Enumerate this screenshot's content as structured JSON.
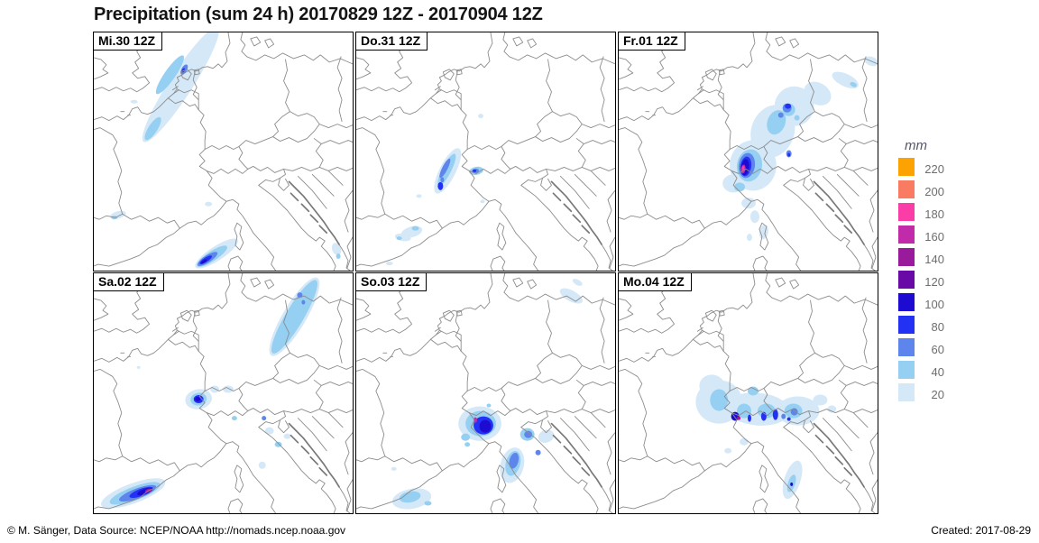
{
  "title": "Precipitation (sum 24 h) 20170829 12Z - 20170904 12Z",
  "legend": {
    "unit": "mm",
    "entries": [
      {
        "value": "220",
        "color": "#FCA303"
      },
      {
        "value": "200",
        "color": "#F97C62"
      },
      {
        "value": "180",
        "color": "#FB3DA8"
      },
      {
        "value": "160",
        "color": "#C12BA9"
      },
      {
        "value": "140",
        "color": "#991B9B"
      },
      {
        "value": "120",
        "color": "#6A0AA6"
      },
      {
        "value": "100",
        "color": "#1D0BD2"
      },
      {
        "value": "80",
        "color": "#2231F4"
      },
      {
        "value": "60",
        "color": "#5D85EC"
      },
      {
        "value": "40",
        "color": "#95CFF2"
      },
      {
        "value": "20",
        "color": "#D4E8F8"
      }
    ]
  },
  "panels": [
    {
      "label": "Mi.30 12Z",
      "blobs": [
        [
          97,
          58,
          76,
          13,
          -57,
          20
        ],
        [
          85,
          47,
          26,
          6,
          -55,
          40
        ],
        [
          66,
          107,
          15,
          5,
          -57,
          40
        ],
        [
          101,
          41,
          6,
          3,
          -60,
          60
        ],
        [
          100,
          42,
          2.5,
          1.5,
          -60,
          80
        ],
        [
          45,
          77,
          4,
          2,
          0,
          20
        ],
        [
          128,
          191,
          4,
          2.5,
          0,
          20
        ],
        [
          27,
          203,
          9,
          4,
          -15,
          20
        ],
        [
          23,
          206,
          3.5,
          2,
          0,
          40
        ],
        [
          137,
          246,
          28,
          8,
          -33,
          20
        ],
        [
          132,
          249,
          20,
          5.5,
          -33,
          40
        ],
        [
          127,
          252,
          13,
          4,
          -33,
          60
        ],
        [
          125,
          253,
          8,
          2.5,
          -33,
          80
        ],
        [
          123,
          255,
          4,
          1.5,
          -33,
          100
        ],
        [
          271,
          241,
          5,
          7,
          -20,
          20
        ],
        [
          273,
          249,
          2.5,
          3,
          0,
          40
        ]
      ]
    },
    {
      "label": "Do.31 12Z",
      "blobs": [
        [
          102,
          154,
          28,
          9,
          -63,
          20
        ],
        [
          101,
          153,
          20,
          5,
          -63,
          40
        ],
        [
          99,
          151,
          12,
          3,
          -63,
          60
        ],
        [
          96,
          164,
          2,
          3,
          0,
          60
        ],
        [
          94,
          171,
          3,
          4.5,
          0,
          80
        ],
        [
          134,
          154,
          8,
          4.5,
          -10,
          40
        ],
        [
          133,
          154,
          4,
          2.5,
          -10,
          60
        ],
        [
          132,
          154,
          2,
          1.5,
          0,
          80
        ],
        [
          70,
          182,
          3,
          2,
          0,
          20
        ],
        [
          62,
          222,
          12,
          6,
          -15,
          20
        ],
        [
          52,
          228,
          9,
          4,
          10,
          20
        ],
        [
          66,
          218,
          4,
          2.5,
          0,
          40
        ],
        [
          48,
          229,
          3,
          2,
          0,
          40
        ],
        [
          139,
          93,
          3,
          2.5,
          0,
          20
        ],
        [
          141,
          188,
          2.5,
          2,
          0,
          20
        ],
        [
          37,
          257,
          4,
          2,
          0,
          20
        ]
      ]
    },
    {
      "label": "Fr.01 12Z",
      "blobs": [
        [
          150,
          148,
          26,
          28,
          0,
          20
        ],
        [
          172,
          110,
          24,
          30,
          20,
          20
        ],
        [
          196,
          82,
          22,
          22,
          0,
          20
        ],
        [
          222,
          68,
          16,
          12,
          30,
          20
        ],
        [
          253,
          53,
          16,
          7,
          25,
          20
        ],
        [
          282,
          32,
          8,
          5,
          20,
          20
        ],
        [
          128,
          168,
          12,
          10,
          0,
          20
        ],
        [
          145,
          190,
          8,
          6,
          0,
          20
        ],
        [
          152,
          205,
          5,
          7,
          0,
          20
        ],
        [
          162,
          222,
          5,
          8,
          10,
          20
        ],
        [
          146,
          228,
          3,
          4,
          0,
          20
        ],
        [
          146,
          148,
          14,
          18,
          10,
          40
        ],
        [
          176,
          100,
          10,
          14,
          20,
          40
        ],
        [
          190,
          86,
          7,
          7,
          0,
          40
        ],
        [
          135,
          172,
          6,
          5,
          0,
          40
        ],
        [
          199,
          95,
          3,
          3,
          0,
          40
        ],
        [
          262,
          58,
          4,
          2.5,
          25,
          40
        ],
        [
          143,
          148,
          9,
          14,
          8,
          60
        ],
        [
          188,
          84,
          5,
          5,
          0,
          60
        ],
        [
          190,
          135,
          3,
          4,
          0,
          60
        ],
        [
          181,
          92,
          3,
          3,
          0,
          60
        ],
        [
          142,
          149,
          6,
          11,
          8,
          80
        ],
        [
          189,
          82,
          3.5,
          3,
          0,
          80
        ],
        [
          190,
          136,
          1.5,
          2,
          0,
          80
        ],
        [
          141,
          150,
          4.5,
          9,
          8,
          100
        ],
        [
          139,
          152,
          2.5,
          5,
          8,
          160
        ],
        [
          139,
          151,
          1.5,
          2.5,
          8,
          180
        ]
      ]
    },
    {
      "label": "Sa.02 12Z",
      "blobs": [
        [
          224,
          48,
          50,
          13,
          -59,
          20
        ],
        [
          224,
          48,
          47,
          10,
          -59,
          40
        ],
        [
          230,
          24,
          3,
          3,
          0,
          60
        ],
        [
          234,
          32,
          2,
          2.5,
          0,
          60
        ],
        [
          117,
          139,
          15,
          11,
          -10,
          20
        ],
        [
          117,
          139,
          9,
          7,
          -10,
          40
        ],
        [
          117,
          139,
          5.5,
          4.5,
          0,
          80
        ],
        [
          116,
          139,
          3,
          2.5,
          0,
          100
        ],
        [
          44,
          243,
          38,
          11,
          -20,
          20
        ],
        [
          46,
          243,
          30,
          7.5,
          -20,
          40
        ],
        [
          49,
          243,
          22,
          5.5,
          -20,
          60
        ],
        [
          53,
          242,
          14,
          4,
          -20,
          80
        ],
        [
          57,
          241,
          9,
          3,
          -20,
          100
        ],
        [
          61,
          240,
          4,
          2,
          -20,
          140
        ],
        [
          150,
          128,
          6,
          4,
          0,
          20
        ],
        [
          135,
          128,
          5,
          4,
          0,
          20
        ],
        [
          157,
          160,
          3,
          2.5,
          0,
          40
        ],
        [
          190,
          160,
          2.5,
          2.5,
          0,
          60
        ],
        [
          196,
          174,
          5,
          4,
          0,
          20
        ],
        [
          206,
          189,
          4,
          3,
          0,
          40
        ],
        [
          216,
          180,
          4,
          3,
          0,
          20
        ],
        [
          188,
          212,
          4,
          4,
          0,
          20
        ],
        [
          50,
          104,
          2,
          1.5,
          0,
          20
        ]
      ]
    },
    {
      "label": "So.03 12Z",
      "blobs": [
        [
          138,
          166,
          24,
          19,
          0,
          20
        ],
        [
          139,
          166,
          17,
          14,
          0,
          40
        ],
        [
          142,
          168,
          11,
          10,
          0,
          80
        ],
        [
          144,
          169,
          6.5,
          7,
          0,
          100
        ],
        [
          133,
          162,
          2,
          3,
          0,
          160
        ],
        [
          122,
          181,
          5,
          4,
          0,
          40
        ],
        [
          124,
          189,
          3,
          2.5,
          0,
          40
        ],
        [
          148,
          146,
          2.5,
          2,
          0,
          40
        ],
        [
          174,
          212,
          13,
          20,
          15,
          20
        ],
        [
          175,
          210,
          8,
          14,
          15,
          40
        ],
        [
          176,
          207,
          5,
          9,
          15,
          60
        ],
        [
          191,
          178,
          8,
          7,
          0,
          40
        ],
        [
          192,
          178,
          4.5,
          4,
          0,
          60
        ],
        [
          203,
          198,
          3,
          3,
          0,
          60
        ],
        [
          212,
          180,
          9,
          7,
          -20,
          20
        ],
        [
          62,
          249,
          22,
          11,
          -10,
          20
        ],
        [
          60,
          247,
          12,
          6,
          -10,
          40
        ],
        [
          80,
          254,
          4,
          2.5,
          0,
          40
        ],
        [
          240,
          25,
          14,
          6,
          28,
          20
        ],
        [
          247,
          10,
          6,
          3,
          28,
          20
        ],
        [
          42,
          216,
          3,
          2,
          0,
          20
        ]
      ]
    },
    {
      "label": "Mo.04 12Z",
      "blobs": [
        [
          112,
          142,
          26,
          24,
          0,
          20
        ],
        [
          155,
          150,
          36,
          18,
          5,
          20
        ],
        [
          200,
          152,
          24,
          16,
          0,
          20
        ],
        [
          104,
          124,
          14,
          12,
          0,
          20
        ],
        [
          225,
          140,
          8,
          6,
          0,
          20
        ],
        [
          238,
          150,
          5,
          4,
          0,
          20
        ],
        [
          122,
          196,
          4,
          3,
          0,
          20
        ],
        [
          140,
          186,
          5,
          4,
          0,
          20
        ],
        [
          194,
          228,
          9,
          22,
          18,
          20
        ],
        [
          112,
          140,
          10,
          12,
          0,
          40
        ],
        [
          140,
          152,
          8,
          8,
          0,
          40
        ],
        [
          165,
          152,
          10,
          8,
          0,
          40
        ],
        [
          195,
          152,
          10,
          8,
          0,
          40
        ],
        [
          150,
          130,
          6,
          5,
          0,
          40
        ],
        [
          193,
          232,
          4,
          10,
          18,
          40
        ],
        [
          130,
          158,
          4.5,
          5,
          0,
          100
        ],
        [
          134,
          160,
          2,
          2,
          0,
          140
        ],
        [
          146,
          160,
          2,
          4,
          0,
          80
        ],
        [
          162,
          158,
          3,
          5,
          0,
          80
        ],
        [
          175,
          156,
          3,
          6,
          0,
          80
        ],
        [
          184,
          158,
          2.5,
          3,
          0,
          60
        ],
        [
          196,
          153,
          4,
          4,
          0,
          60
        ],
        [
          190,
          161,
          2,
          2,
          0,
          80
        ],
        [
          193,
          233,
          1.5,
          2,
          0,
          100
        ]
      ]
    }
  ],
  "footer": {
    "credit": "© M. Sänger, Data Source: NCEP/NOAA http://nomads.ncep.noaa.gov",
    "created": "Created: 2017-08-29"
  }
}
